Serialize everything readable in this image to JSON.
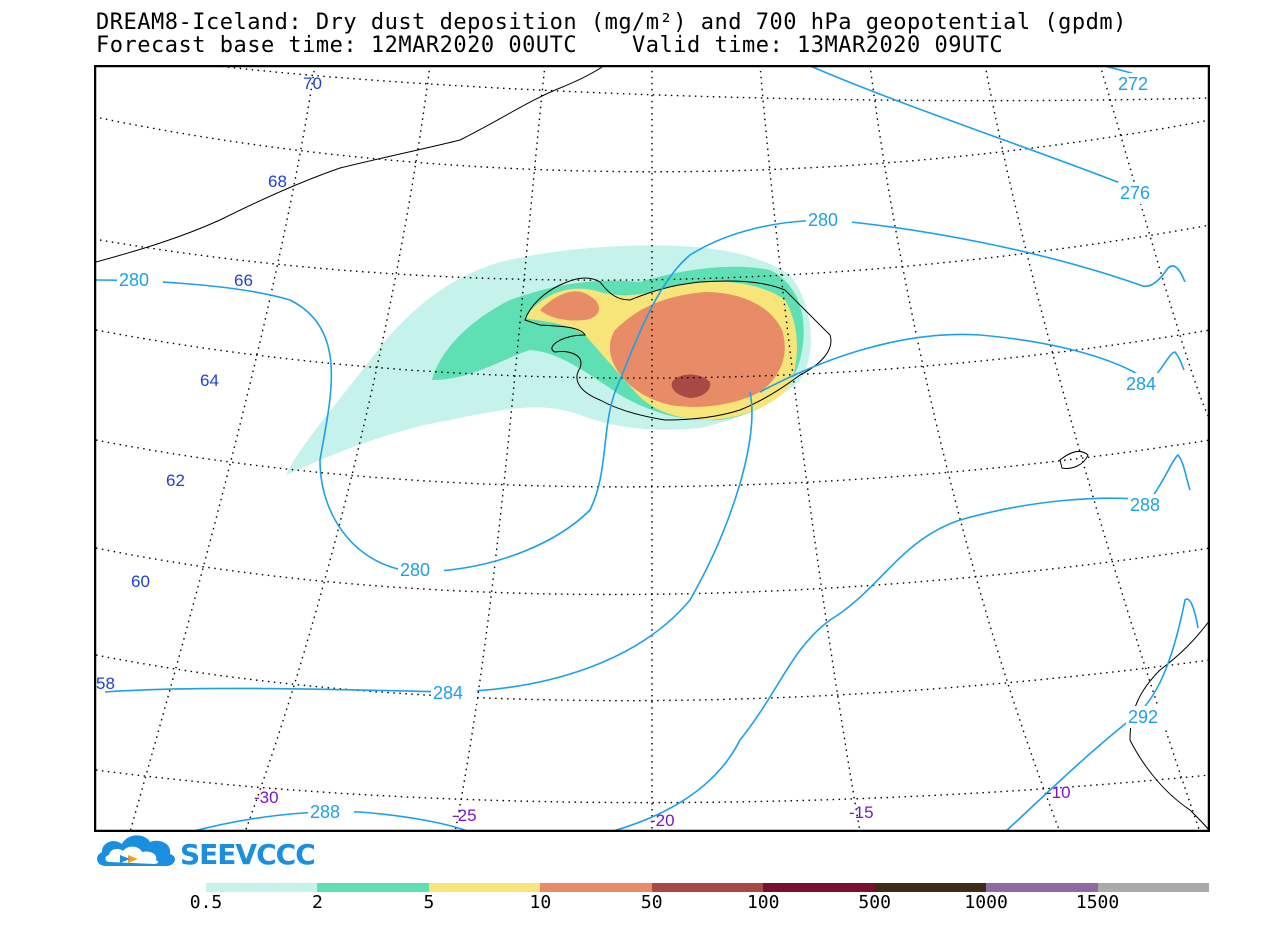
{
  "title": {
    "line1": "DREAM8-Iceland: Dry dust deposition (mg/m²) and 700 hPa geopotential (gpdm)",
    "line2": "Forecast base time: 12MAR2020 00UTC    Valid time: 13MAR2020 09UTC"
  },
  "latitude_labels": [
    "70",
    "68",
    "66",
    "64",
    "62",
    "60",
    "58"
  ],
  "longitude_labels": [
    "-30",
    "-25",
    "-20",
    "-15",
    "-10"
  ],
  "contour_labels": [
    "272",
    "276",
    "280",
    "280",
    "280",
    "284",
    "284",
    "288",
    "288",
    "292"
  ],
  "colorbar": {
    "colors": [
      "#c6f2ec",
      "#5ee0b4",
      "#f7e57a",
      "#e88c68",
      "#a84a44",
      "#7a1030",
      "#3e2a18",
      "#8e6aa0",
      "#aaaaaa"
    ],
    "labels": [
      "0.5",
      "2",
      "5",
      "10",
      "50",
      "100",
      "500",
      "1000",
      "1500"
    ]
  },
  "logo": {
    "text": "SEEVCCC"
  },
  "colors": {
    "contour": "#1ea0e6",
    "lat_label": "#1f3fd8",
    "lon_label": "#7a16c8",
    "coast": "#000000"
  }
}
